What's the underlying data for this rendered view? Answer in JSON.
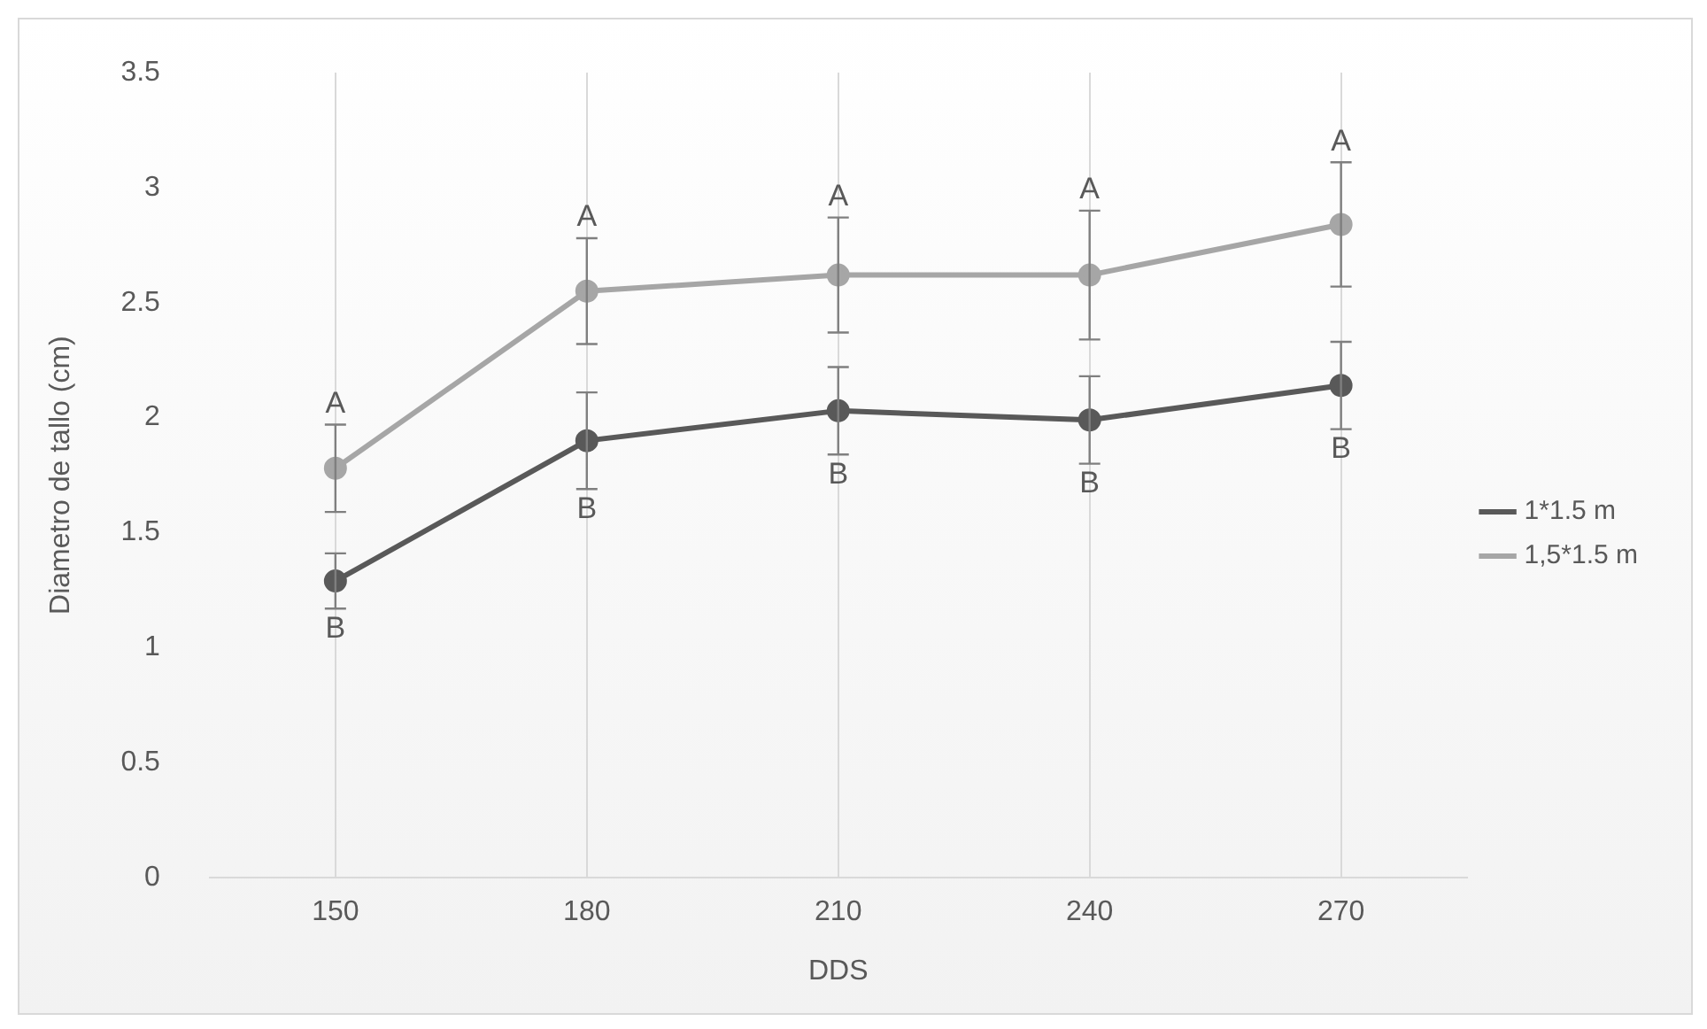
{
  "chart_data": {
    "type": "line",
    "xlabel": "DDS",
    "ylabel": "Diametro de tallo (cm)",
    "categories": [
      "150",
      "180",
      "210",
      "240",
      "270"
    ],
    "series": [
      {
        "name": "1*1.5 m",
        "color": "#595959",
        "values": [
          1.29,
          1.9,
          2.03,
          1.99,
          2.14
        ],
        "errors": [
          0.12,
          0.21,
          0.19,
          0.19,
          0.19
        ]
      },
      {
        "name": "1,5*1.5 m",
        "color": "#a6a6a6",
        "values": [
          1.78,
          2.55,
          2.62,
          2.62,
          2.84
        ],
        "errors": [
          0.19,
          0.23,
          0.25,
          0.28,
          0.27
        ]
      }
    ],
    "ylim": [
      0,
      3.5
    ],
    "yticks": [
      0,
      0.5,
      1,
      1.5,
      2,
      2.5,
      3,
      3.5
    ],
    "grid": "x",
    "legend": "right",
    "marker": "circle",
    "line_style": "solid",
    "annotations": [
      {
        "text": "A",
        "x": "150",
        "y": 1.97
      },
      {
        "text": "A",
        "x": "180",
        "y": 2.78
      },
      {
        "text": "A",
        "x": "210",
        "y": 2.87
      },
      {
        "text": "A",
        "x": "240",
        "y": 2.9
      },
      {
        "text": "A",
        "x": "270",
        "y": 3.11
      },
      {
        "text": "B",
        "x": "150",
        "y": 1.17
      },
      {
        "text": "B",
        "x": "180",
        "y": 1.69
      },
      {
        "text": "B",
        "x": "210",
        "y": 1.84
      },
      {
        "text": "B",
        "x": "240",
        "y": 1.8
      },
      {
        "text": "B",
        "x": "270",
        "y": 1.95
      }
    ]
  }
}
